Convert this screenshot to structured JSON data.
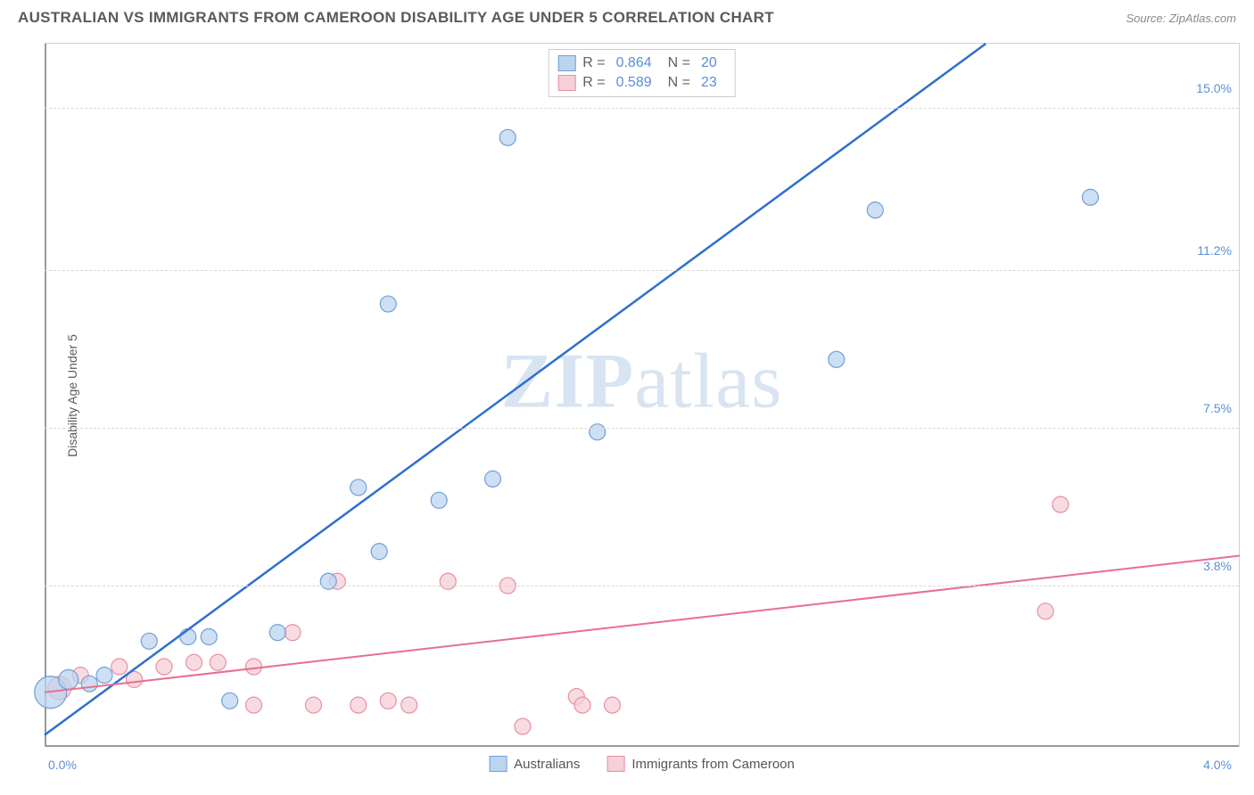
{
  "header": {
    "title": "AUSTRALIAN VS IMMIGRANTS FROM CAMEROON DISABILITY AGE UNDER 5 CORRELATION CHART",
    "source": "Source: ZipAtlas.com"
  },
  "watermark": {
    "part1": "ZIP",
    "part2": "atlas"
  },
  "chart": {
    "type": "scatter",
    "y_axis_label": "Disability Age Under 5",
    "background_color": "#ffffff",
    "grid_color": "#d8d8d8",
    "axis_color": "#999999",
    "tick_label_color": "#5b8fd6",
    "tick_fontsize": 14,
    "label_fontsize": 14,
    "xlim": [
      0.0,
      4.0
    ],
    "ylim": [
      0.0,
      16.5
    ],
    "x_ticks": [
      {
        "value": 0.0,
        "label": "0.0%"
      },
      {
        "value": 4.0,
        "label": "4.0%"
      }
    ],
    "y_gridlines": [
      3.8,
      7.5,
      11.2,
      15.0
    ],
    "y_tick_labels": [
      "3.8%",
      "7.5%",
      "11.2%",
      "15.0%"
    ],
    "series": [
      {
        "name": "Australians",
        "marker_fill": "#bcd4ef",
        "marker_stroke": "#6f9fd8",
        "marker_opacity": 0.75,
        "marker_radius": 9,
        "line_color": "#2f6fd0",
        "line_width": 2.5,
        "R": "0.864",
        "N": "20",
        "points": [
          {
            "x": 0.02,
            "y": 1.3,
            "r": 18
          },
          {
            "x": 0.08,
            "y": 1.6,
            "r": 11
          },
          {
            "x": 0.15,
            "y": 1.5,
            "r": 9
          },
          {
            "x": 0.2,
            "y": 1.7,
            "r": 9
          },
          {
            "x": 0.35,
            "y": 2.5,
            "r": 9
          },
          {
            "x": 0.48,
            "y": 2.6,
            "r": 9
          },
          {
            "x": 0.55,
            "y": 2.6,
            "r": 9
          },
          {
            "x": 0.62,
            "y": 1.1,
            "r": 9
          },
          {
            "x": 0.78,
            "y": 2.7,
            "r": 9
          },
          {
            "x": 0.95,
            "y": 3.9,
            "r": 9
          },
          {
            "x": 1.05,
            "y": 6.1,
            "r": 9
          },
          {
            "x": 1.12,
            "y": 4.6,
            "r": 9
          },
          {
            "x": 1.32,
            "y": 5.8,
            "r": 9
          },
          {
            "x": 1.15,
            "y": 10.4,
            "r": 9
          },
          {
            "x": 1.5,
            "y": 6.3,
            "r": 9
          },
          {
            "x": 1.85,
            "y": 7.4,
            "r": 9
          },
          {
            "x": 1.55,
            "y": 14.3,
            "r": 9
          },
          {
            "x": 2.65,
            "y": 9.1,
            "r": 9
          },
          {
            "x": 2.78,
            "y": 12.6,
            "r": 9
          },
          {
            "x": 3.5,
            "y": 12.9,
            "r": 9
          }
        ],
        "trend": {
          "x1": 0.0,
          "y1": 0.3,
          "x2": 3.15,
          "y2": 16.5
        }
      },
      {
        "name": "Immigrants from Cameroon",
        "marker_fill": "#f6cfd7",
        "marker_stroke": "#e88fa3",
        "marker_opacity": 0.75,
        "marker_radius": 9,
        "line_color": "#e76f8d",
        "line_width": 2,
        "R": "0.589",
        "N": "23",
        "points": [
          {
            "x": 0.05,
            "y": 1.4,
            "r": 13
          },
          {
            "x": 0.12,
            "y": 1.7,
            "r": 9
          },
          {
            "x": 0.25,
            "y": 1.9,
            "r": 9
          },
          {
            "x": 0.3,
            "y": 1.6,
            "r": 9
          },
          {
            "x": 0.4,
            "y": 1.9,
            "r": 9
          },
          {
            "x": 0.5,
            "y": 2.0,
            "r": 9
          },
          {
            "x": 0.58,
            "y": 2.0,
            "r": 9
          },
          {
            "x": 0.7,
            "y": 1.9,
            "r": 9
          },
          {
            "x": 0.7,
            "y": 1.0,
            "r": 9
          },
          {
            "x": 0.83,
            "y": 2.7,
            "r": 9
          },
          {
            "x": 0.9,
            "y": 1.0,
            "r": 9
          },
          {
            "x": 0.98,
            "y": 3.9,
            "r": 9
          },
          {
            "x": 1.05,
            "y": 1.0,
            "r": 9
          },
          {
            "x": 1.15,
            "y": 1.1,
            "r": 9
          },
          {
            "x": 1.22,
            "y": 1.0,
            "r": 9
          },
          {
            "x": 1.35,
            "y": 3.9,
            "r": 9
          },
          {
            "x": 1.55,
            "y": 3.8,
            "r": 9
          },
          {
            "x": 1.6,
            "y": 0.5,
            "r": 9
          },
          {
            "x": 1.78,
            "y": 1.2,
            "r": 9
          },
          {
            "x": 1.8,
            "y": 1.0,
            "r": 9
          },
          {
            "x": 1.9,
            "y": 1.0,
            "r": 9
          },
          {
            "x": 3.35,
            "y": 3.2,
            "r": 9
          },
          {
            "x": 3.4,
            "y": 5.7,
            "r": 9
          }
        ],
        "trend": {
          "x1": 0.0,
          "y1": 1.3,
          "x2": 4.0,
          "y2": 4.5
        }
      }
    ],
    "legend_top": {
      "labels": {
        "r": "R =",
        "n": "N ="
      }
    },
    "legend_bottom": [
      {
        "label": "Australians",
        "fill": "#bcd4ef",
        "stroke": "#6f9fd8"
      },
      {
        "label": "Immigrants from Cameroon",
        "fill": "#f6cfd7",
        "stroke": "#e88fa3"
      }
    ]
  }
}
